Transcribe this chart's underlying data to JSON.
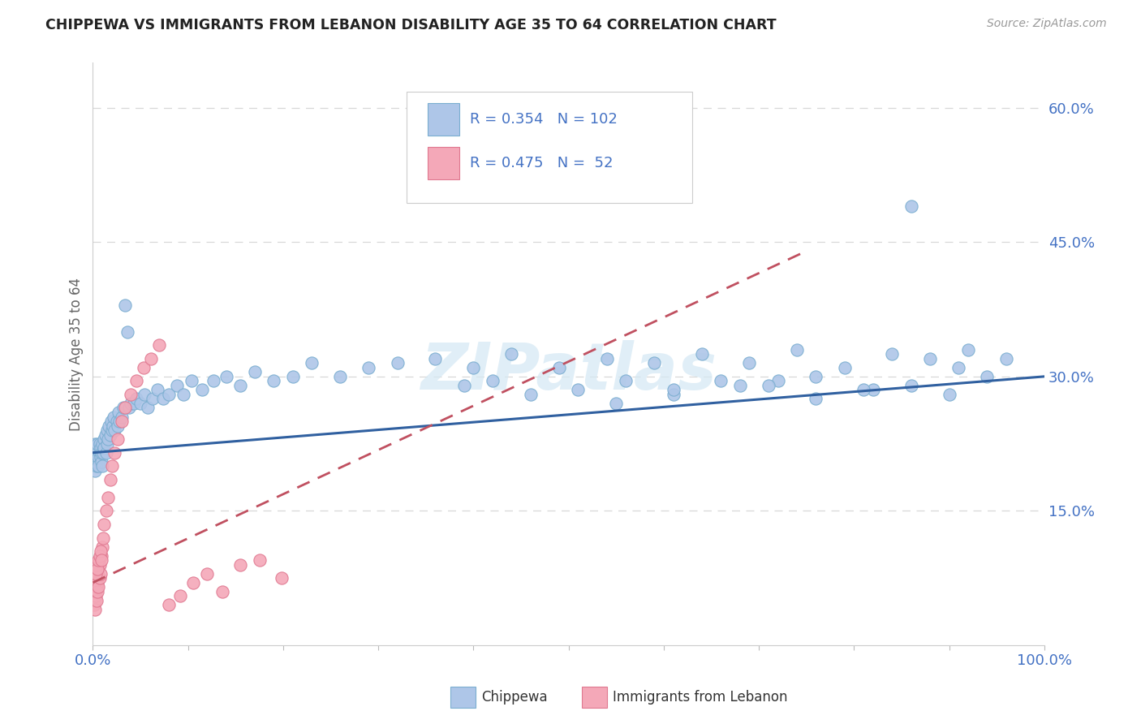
{
  "title": "CHIPPEWA VS IMMIGRANTS FROM LEBANON DISABILITY AGE 35 TO 64 CORRELATION CHART",
  "source": "Source: ZipAtlas.com",
  "ylabel": "Disability Age 35 to 64",
  "color_chippewa_fill": "#aec6e8",
  "color_chippewa_edge": "#7aaed0",
  "color_lebanon_fill": "#f4a8b8",
  "color_lebanon_edge": "#e07890",
  "color_line_chippewa": "#3060a0",
  "color_line_lebanon": "#c05060",
  "color_grid": "#d8d8d8",
  "color_tick_label": "#4472c4",
  "watermark_color": "#d4e8f4",
  "background_color": "#ffffff",
  "xlim": [
    0.0,
    1.0
  ],
  "ylim": [
    0.0,
    0.65
  ],
  "yticks": [
    0.15,
    0.3,
    0.45,
    0.6
  ],
  "ytick_labels": [
    "15.0%",
    "30.0%",
    "45.0%",
    "60.0%"
  ],
  "chippewa_x": [
    0.001,
    0.002,
    0.002,
    0.003,
    0.003,
    0.004,
    0.004,
    0.005,
    0.005,
    0.006,
    0.006,
    0.007,
    0.007,
    0.008,
    0.008,
    0.009,
    0.009,
    0.01,
    0.01,
    0.011,
    0.012,
    0.012,
    0.013,
    0.014,
    0.015,
    0.015,
    0.016,
    0.017,
    0.018,
    0.019,
    0.02,
    0.021,
    0.022,
    0.023,
    0.025,
    0.026,
    0.027,
    0.028,
    0.03,
    0.032,
    0.034,
    0.036,
    0.038,
    0.04,
    0.043,
    0.046,
    0.05,
    0.054,
    0.058,
    0.063,
    0.068,
    0.074,
    0.08,
    0.088,
    0.095,
    0.104,
    0.115,
    0.127,
    0.14,
    0.155,
    0.17,
    0.19,
    0.21,
    0.23,
    0.26,
    0.29,
    0.32,
    0.36,
    0.4,
    0.44,
    0.49,
    0.54,
    0.59,
    0.64,
    0.69,
    0.74,
    0.79,
    0.84,
    0.88,
    0.92,
    0.96,
    0.55,
    0.61,
    0.68,
    0.72,
    0.76,
    0.82,
    0.86,
    0.9,
    0.94,
    0.39,
    0.42,
    0.46,
    0.51,
    0.56,
    0.61,
    0.66,
    0.71,
    0.76,
    0.81,
    0.86,
    0.91
  ],
  "chippewa_y": [
    0.21,
    0.225,
    0.195,
    0.215,
    0.205,
    0.22,
    0.2,
    0.215,
    0.225,
    0.21,
    0.2,
    0.225,
    0.215,
    0.21,
    0.22,
    0.205,
    0.215,
    0.225,
    0.2,
    0.215,
    0.23,
    0.22,
    0.235,
    0.215,
    0.225,
    0.24,
    0.23,
    0.245,
    0.235,
    0.25,
    0.24,
    0.245,
    0.255,
    0.24,
    0.25,
    0.245,
    0.26,
    0.25,
    0.255,
    0.265,
    0.38,
    0.35,
    0.265,
    0.27,
    0.27,
    0.275,
    0.27,
    0.28,
    0.265,
    0.275,
    0.285,
    0.275,
    0.28,
    0.29,
    0.28,
    0.295,
    0.285,
    0.295,
    0.3,
    0.29,
    0.305,
    0.295,
    0.3,
    0.315,
    0.3,
    0.31,
    0.315,
    0.32,
    0.31,
    0.325,
    0.31,
    0.32,
    0.315,
    0.325,
    0.315,
    0.33,
    0.31,
    0.325,
    0.32,
    0.33,
    0.32,
    0.27,
    0.28,
    0.29,
    0.295,
    0.275,
    0.285,
    0.29,
    0.28,
    0.3,
    0.29,
    0.295,
    0.28,
    0.285,
    0.295,
    0.285,
    0.295,
    0.29,
    0.3,
    0.285,
    0.49,
    0.31
  ],
  "lebanon_x": [
    0.001,
    0.001,
    0.001,
    0.002,
    0.002,
    0.002,
    0.003,
    0.003,
    0.003,
    0.004,
    0.004,
    0.004,
    0.005,
    0.005,
    0.005,
    0.006,
    0.006,
    0.007,
    0.007,
    0.008,
    0.009,
    0.01,
    0.011,
    0.012,
    0.014,
    0.016,
    0.018,
    0.02,
    0.023,
    0.026,
    0.03,
    0.034,
    0.04,
    0.046,
    0.053,
    0.061,
    0.07,
    0.08,
    0.092,
    0.105,
    0.12,
    0.136,
    0.155,
    0.175,
    0.198,
    0.003,
    0.004,
    0.005,
    0.006,
    0.007,
    0.008,
    0.009
  ],
  "lebanon_y": [
    0.06,
    0.055,
    0.045,
    0.065,
    0.05,
    0.04,
    0.07,
    0.055,
    0.06,
    0.065,
    0.05,
    0.075,
    0.07,
    0.06,
    0.08,
    0.065,
    0.085,
    0.075,
    0.09,
    0.08,
    0.1,
    0.11,
    0.12,
    0.135,
    0.15,
    0.165,
    0.185,
    0.2,
    0.215,
    0.23,
    0.25,
    0.265,
    0.28,
    0.295,
    0.31,
    0.32,
    0.335,
    0.045,
    0.055,
    0.07,
    0.08,
    0.06,
    0.09,
    0.095,
    0.075,
    0.08,
    0.09,
    0.085,
    0.095,
    0.1,
    0.105,
    0.095
  ],
  "chip_line_x": [
    0.0,
    1.0
  ],
  "chip_line_y": [
    0.215,
    0.3
  ],
  "leb_line_x": [
    0.0,
    0.75
  ],
  "leb_line_y": [
    0.07,
    0.44
  ]
}
